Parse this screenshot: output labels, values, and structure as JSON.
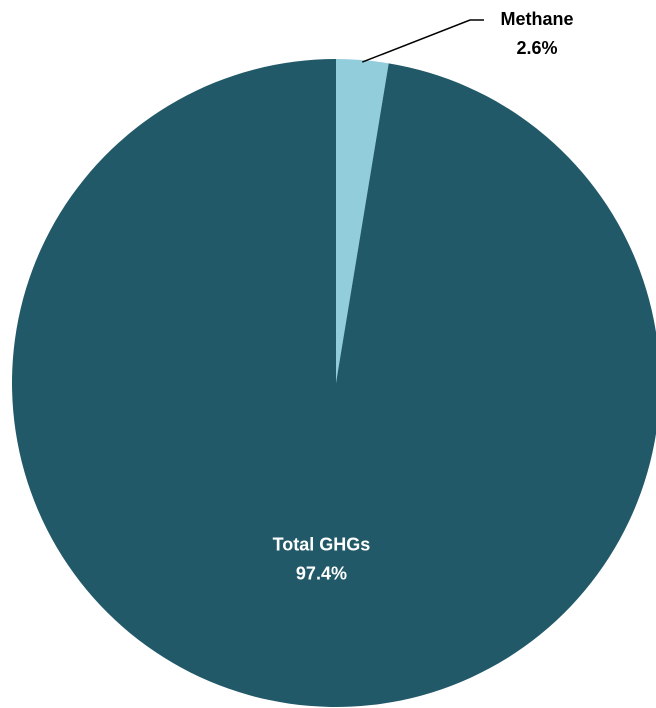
{
  "chart_data": {
    "type": "pie",
    "title": "",
    "start_angle_deg": 0,
    "direction": "clockwise",
    "slices": [
      {
        "name": "Methane",
        "value": 2.6,
        "label": "2.6%",
        "color": "#92CDDC",
        "label_color": "#000000",
        "label_placement": "outside"
      },
      {
        "name": "Total GHGs",
        "value": 97.4,
        "label": "97.4%",
        "color": "#215968",
        "label_color": "#ffffff",
        "label_placement": "inside"
      }
    ],
    "legend": "none"
  }
}
